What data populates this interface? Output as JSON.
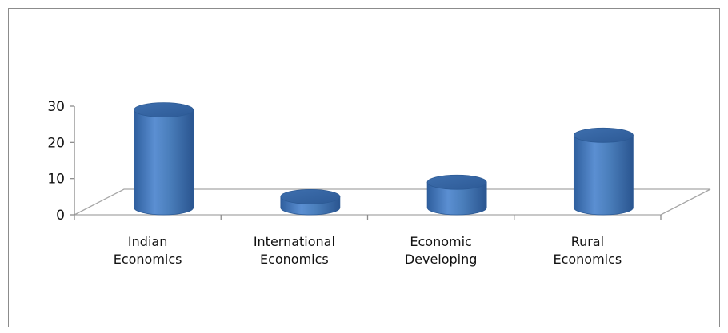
{
  "chart_data": {
    "type": "bar",
    "style": "3d-cylinder",
    "categories": [
      [
        "Indian",
        "Economics"
      ],
      [
        "International",
        "Economics"
      ],
      [
        "Economic",
        "Developing"
      ],
      [
        "Rural",
        "Economics"
      ]
    ],
    "values": [
      27,
      3,
      7,
      20
    ],
    "ylim": [
      0,
      30
    ],
    "yticks": [
      0,
      10,
      20,
      30
    ],
    "title": "",
    "xlabel": "",
    "ylabel": "",
    "grid": false,
    "legend": "none",
    "bar_color": "#4a7ebb",
    "bar_top_color": "#3a6aa8",
    "bar_edge_color": "#2c5a95",
    "floor_color": "#a6a6a6"
  }
}
